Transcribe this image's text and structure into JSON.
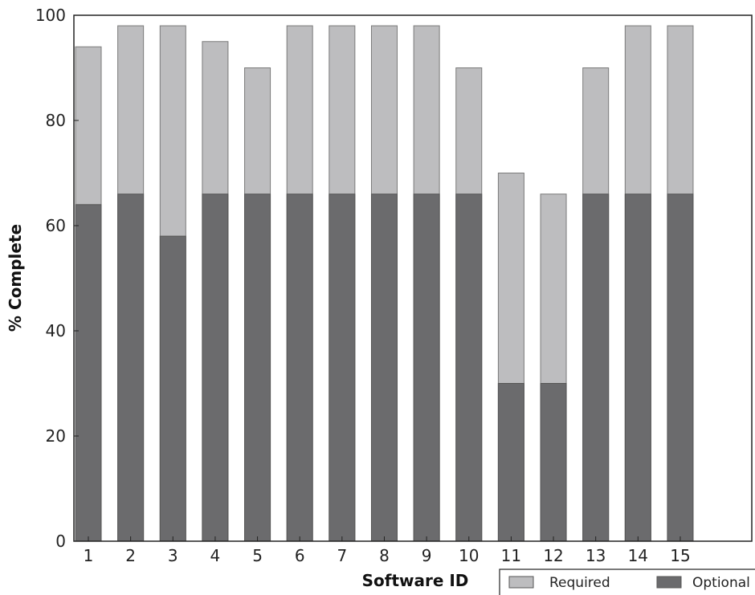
{
  "chart_data": {
    "type": "bar",
    "stacked": "overlay",
    "xlabel": "Software ID",
    "ylabel": "% Complete",
    "ylim": [
      0,
      100
    ],
    "yticks": [
      0,
      20,
      40,
      60,
      80,
      100
    ],
    "categories": [
      "1",
      "2",
      "3",
      "4",
      "5",
      "6",
      "7",
      "8",
      "9",
      "10",
      "11",
      "12",
      "13",
      "14",
      "15"
    ],
    "series": [
      {
        "name": "Required",
        "color": "#bdbdbf",
        "values": [
          94,
          98,
          98,
          95,
          90,
          98,
          98,
          98,
          98,
          90,
          70,
          66,
          90,
          98,
          98
        ]
      },
      {
        "name": "Optional",
        "color": "#6b6b6d",
        "values": [
          64,
          66,
          58,
          66,
          66,
          66,
          66,
          66,
          66,
          66,
          30,
          30,
          66,
          66,
          66
        ]
      }
    ],
    "grid": false,
    "legend_position": "bottom-right"
  }
}
